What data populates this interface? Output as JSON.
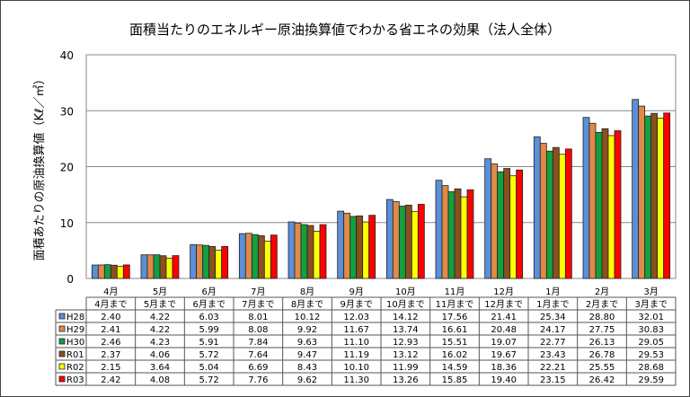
{
  "chart_data": {
    "type": "bar",
    "title": "面積当たりのエネルギー原油換算値でわかる省エネの効果（法人全体）",
    "ylabel": "面積あたりの原油換算値（Kℓ／㎡）",
    "xlabel": "",
    "ylim": [
      0,
      40
    ],
    "yticks": [
      "0",
      "10",
      "20",
      "30",
      "40"
    ],
    "grid": true,
    "legend": "table-left",
    "categories": [
      "4月",
      "5月",
      "6月",
      "7月",
      "8月",
      "9月",
      "10月",
      "11月",
      "12月",
      "1月",
      "2月",
      "3月"
    ],
    "sub_categories": [
      "4月まで",
      "5月まで",
      "6月まで",
      "7月まで",
      "8月まで",
      "9月まで",
      "10月まで",
      "11月まで",
      "12月まで",
      "1月まで",
      "2月まで",
      "3月まで"
    ],
    "series": [
      {
        "name": "H28",
        "color": "#5B8FD8",
        "values": [
          2.4,
          4.22,
          6.03,
          8.01,
          10.12,
          12.03,
          14.12,
          17.56,
          21.41,
          25.34,
          28.8,
          32.01
        ]
      },
      {
        "name": "H29",
        "color": "#E08A48",
        "values": [
          2.41,
          4.22,
          5.99,
          8.08,
          9.92,
          11.67,
          13.74,
          16.61,
          20.48,
          24.17,
          27.75,
          30.83
        ]
      },
      {
        "name": "H30",
        "color": "#12A040",
        "values": [
          2.46,
          4.23,
          5.91,
          7.84,
          9.63,
          11.1,
          12.93,
          15.51,
          19.07,
          22.77,
          26.13,
          29.05
        ]
      },
      {
        "name": "R01",
        "color": "#8A5020",
        "values": [
          2.37,
          4.06,
          5.72,
          7.64,
          9.47,
          11.19,
          13.12,
          16.02,
          19.67,
          23.43,
          26.78,
          29.53
        ]
      },
      {
        "name": "R02",
        "color": "#FFFF00",
        "values": [
          2.15,
          3.64,
          5.04,
          6.69,
          8.43,
          10.1,
          11.99,
          14.59,
          18.36,
          22.21,
          25.55,
          28.68
        ]
      },
      {
        "name": "R03",
        "color": "#FF0000",
        "values": [
          2.42,
          4.08,
          5.72,
          7.76,
          9.62,
          11.3,
          13.26,
          15.85,
          19.4,
          23.15,
          26.42,
          29.59
        ]
      }
    ],
    "table_values": [
      [
        "2.40",
        "4.22",
        "6.03",
        "8.01",
        "10.12",
        "12.03",
        "14.12",
        "17.56",
        "21.41",
        "25.34",
        "28.80",
        "32.01"
      ],
      [
        "2.41",
        "4.22",
        "5.99",
        "8.08",
        "9.92",
        "11.67",
        "13.74",
        "16.61",
        "20.48",
        "24.17",
        "27.75",
        "30.83"
      ],
      [
        "2.46",
        "4.23",
        "5.91",
        "7.84",
        "9.63",
        "11.10",
        "12.93",
        "15.51",
        "19.07",
        "22.77",
        "26.13",
        "29.05"
      ],
      [
        "2.37",
        "4.06",
        "5.72",
        "7.64",
        "9.47",
        "11.19",
        "13.12",
        "16.02",
        "19.67",
        "23.43",
        "26.78",
        "29.53"
      ],
      [
        "2.15",
        "3.64",
        "5.04",
        "6.69",
        "8.43",
        "10.10",
        "11.99",
        "14.59",
        "18.36",
        "22.21",
        "25.55",
        "28.68"
      ],
      [
        "2.42",
        "4.08",
        "5.72",
        "7.76",
        "9.62",
        "11.30",
        "13.26",
        "15.85",
        "19.40",
        "23.15",
        "26.42",
        "29.59"
      ]
    ]
  }
}
